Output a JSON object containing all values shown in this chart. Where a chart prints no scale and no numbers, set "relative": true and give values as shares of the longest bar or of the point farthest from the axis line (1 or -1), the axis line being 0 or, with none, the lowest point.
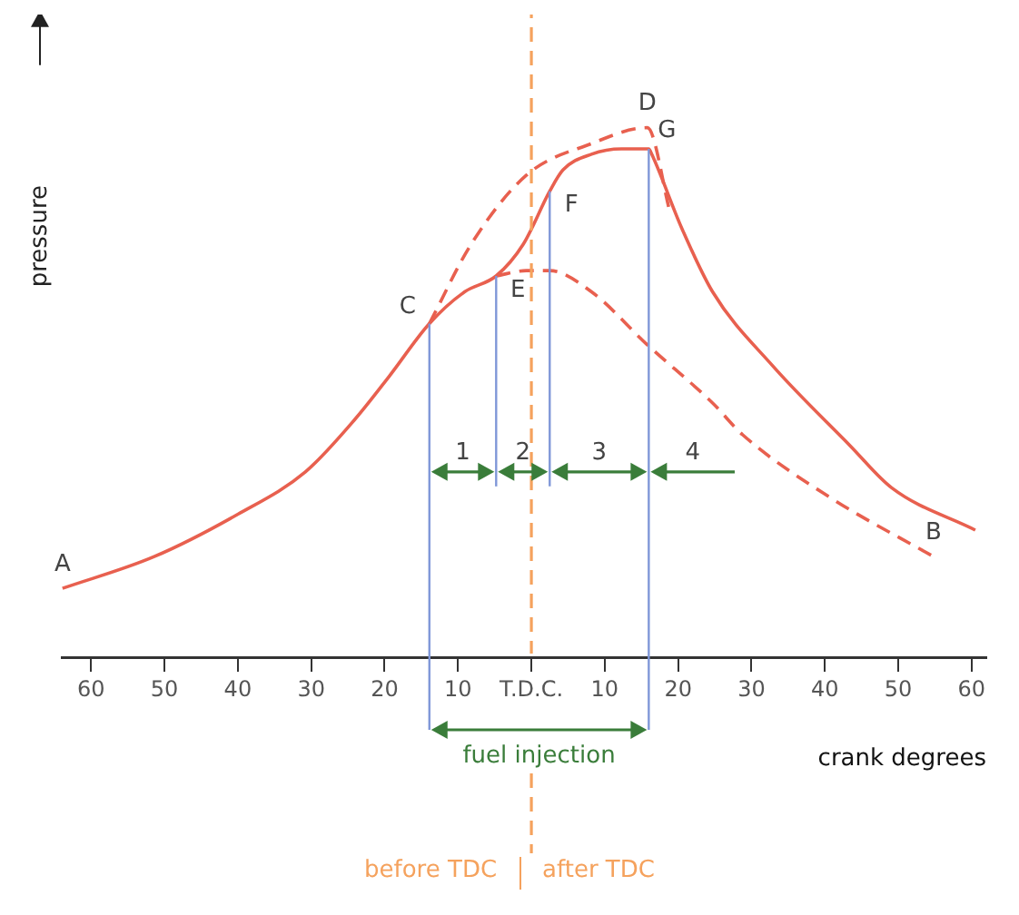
{
  "chart_data": {
    "type": "line",
    "relative": true,
    "xlabel": "crank degrees",
    "ylabel": "pressure",
    "marker": "none",
    "xlim": [
      -64,
      62
    ],
    "xticks": [
      {
        "value": -60,
        "label": "60"
      },
      {
        "value": -50,
        "label": "50"
      },
      {
        "value": -40,
        "label": "40"
      },
      {
        "value": -30,
        "label": "30"
      },
      {
        "value": -20,
        "label": "20"
      },
      {
        "value": -10,
        "label": "10"
      },
      {
        "value": 0,
        "label": "T.D.C."
      },
      {
        "value": 10,
        "label": "10"
      },
      {
        "value": 20,
        "label": "20"
      },
      {
        "value": 30,
        "label": "30"
      },
      {
        "value": 40,
        "label": "40"
      },
      {
        "value": 50,
        "label": "50"
      },
      {
        "value": 60,
        "label": "60"
      }
    ],
    "series": [
      {
        "color": "#e8604f",
        "line_style": "solid",
        "x": [
          -63.9,
          -51.4,
          -40,
          -30.8,
          -24,
          -19.4,
          -13.9,
          -9.1,
          -4.8,
          -1.1,
          2.5,
          4.3,
          8.2,
          12.3,
          16,
          16.4,
          20.5,
          24.7,
          32.9,
          43.4,
          49.1,
          60.5
        ],
        "values": [
          0.13,
          0.19,
          0.27,
          0.35,
          0.45,
          0.53,
          0.63,
          0.69,
          0.72,
          0.78,
          0.88,
          0.92,
          0.95,
          0.96,
          0.96,
          0.95,
          0.81,
          0.69,
          0.55,
          0.4,
          0.32,
          0.24
        ]
      },
      {
        "color": "#e8604f",
        "line_style": "dashed",
        "x": [
          -13.9,
          -8.2,
          -0.7,
          8.2,
          15.8,
          18.9
        ],
        "values": [
          0.63,
          0.78,
          0.91,
          0.97,
          1.0,
          0.84
        ]
      },
      {
        "color": "#e8604f",
        "line_style": "dashed",
        "x": [
          -4.8,
          -0.7,
          2.5,
          8.2,
          15.8,
          24.7,
          28.8,
          40.9,
          54.8
        ],
        "values": [
          0.72,
          0.73,
          0.73,
          0.69,
          0.59,
          0.48,
          0.42,
          0.3,
          0.19
        ]
      }
    ],
    "ref_lines": [
      {
        "axis": "x",
        "value": 0,
        "color": "#f5a25d",
        "line_style": "dashed"
      },
      {
        "axis": "x",
        "value": -13.9,
        "color": "#7f97d8",
        "line_style": "solid"
      },
      {
        "axis": "x",
        "value": -4.8,
        "color": "#7f97d8",
        "line_style": "solid"
      },
      {
        "axis": "x",
        "value": 2.5,
        "color": "#7f97d8",
        "line_style": "solid"
      },
      {
        "axis": "x",
        "value": 16,
        "color": "#7f97d8",
        "line_style": "solid"
      }
    ],
    "annotations": [
      {
        "text": "A",
        "x": -63.9,
        "y": 0.13
      },
      {
        "text": "B",
        "x": 54.8,
        "y": 0.19
      },
      {
        "text": "C",
        "x": -13.9,
        "y": 0.63
      },
      {
        "text": "D",
        "x": 15.8,
        "y": 1.0
      },
      {
        "text": "E",
        "x": -4.8,
        "y": 0.72
      },
      {
        "text": "F",
        "x": 2.5,
        "y": 0.88
      },
      {
        "text": "G",
        "x": 16,
        "y": 0.96
      },
      "1",
      "2",
      "3",
      "4",
      "fuel injection",
      "before TDC",
      "after TDC"
    ]
  }
}
